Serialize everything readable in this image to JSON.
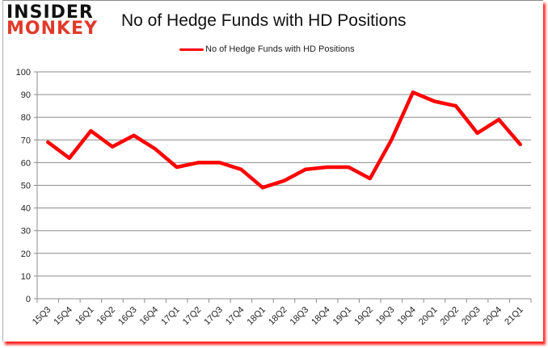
{
  "logo": {
    "line1": "INSIDER",
    "line2": "MONKEY"
  },
  "header": {
    "title": "No of Hedge Funds with HD Positions"
  },
  "legend": {
    "label": "No of Hedge Funds with HD Positions",
    "color": "#ff0000"
  },
  "colors": {
    "line": "#ff0000",
    "grid": "#8c8c8c",
    "axis": "#8c8c8c",
    "frame_shadow": "#ff0000"
  },
  "chart_data": {
    "type": "line",
    "title": "No of Hedge Funds with HD Positions",
    "xlabel": "",
    "ylabel": "",
    "ylim": [
      0,
      100
    ],
    "yticks": [
      0,
      10,
      20,
      30,
      40,
      50,
      60,
      70,
      80,
      90,
      100
    ],
    "grid": true,
    "legend_position": "top",
    "categories": [
      "15Q3",
      "15Q4",
      "16Q1",
      "16Q2",
      "16Q3",
      "16Q4",
      "17Q1",
      "17Q2",
      "17Q3",
      "17Q4",
      "18Q1",
      "18Q2",
      "18Q3",
      "18Q4",
      "19Q1",
      "19Q2",
      "19Q3",
      "19Q4",
      "20Q1",
      "20Q2",
      "20Q3",
      "20Q4",
      "21Q1"
    ],
    "series": [
      {
        "name": "No of Hedge Funds with HD Positions",
        "values": [
          69,
          62,
          74,
          67,
          72,
          66,
          58,
          60,
          60,
          57,
          49,
          52,
          57,
          58,
          58,
          53,
          70,
          91,
          87,
          85,
          73,
          79,
          68
        ]
      }
    ]
  }
}
